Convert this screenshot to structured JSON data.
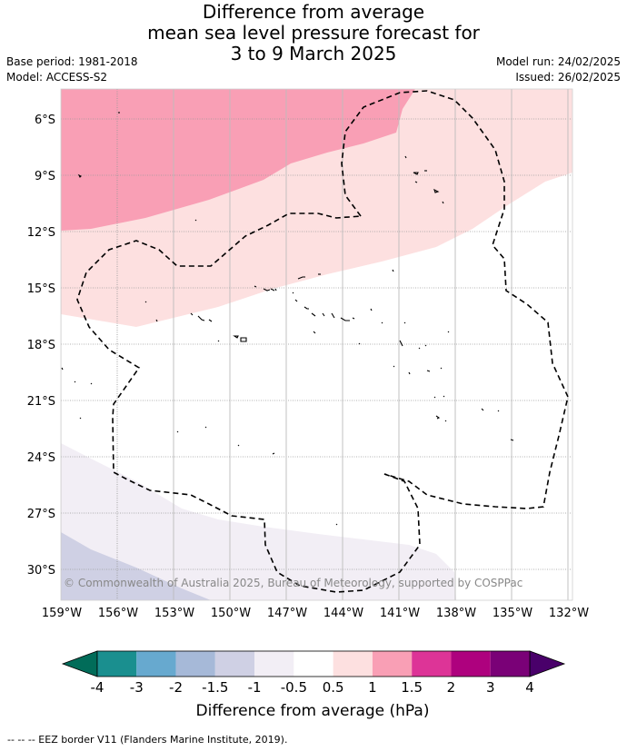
{
  "title": {
    "line1": "Difference from average",
    "line2": "mean sea level pressure forecast for",
    "line3": "3 to 9 March 2025"
  },
  "meta": {
    "base_period": "Base period: 1981-2018",
    "model": "Model: ACCESS-S2",
    "model_run": "Model run: 24/02/2025",
    "issued": "Issued: 26/02/2025"
  },
  "map": {
    "lat_labels": [
      "6°S",
      "9°S",
      "12°S",
      "15°S",
      "18°S",
      "21°S",
      "24°S",
      "27°S",
      "30°S"
    ],
    "lon_labels": [
      "159°W",
      "156°W",
      "153°W",
      "150°W",
      "147°W",
      "144°W",
      "141°W",
      "138°W",
      "135°W",
      "132°W"
    ],
    "copyright": "© Commonwealth of Australia 2025, Bureau of Meteorology, supported by COSPPac",
    "fills": {
      "p1_to_1_5": "#f99fb5",
      "p0_5_to_1": "#fde0e0",
      "m0_5_to_m1": "#f2eef5",
      "m1_to_m1_5": "#cfd0e4"
    }
  },
  "colorbar": {
    "tick_labels": [
      "-4",
      "-3",
      "-2",
      "-1.5",
      "-1",
      "-0.5",
      "0.5",
      "1",
      "1.5",
      "2",
      "3",
      "4"
    ],
    "segment_colors": [
      "#1a8f8f",
      "#67a9cf",
      "#a6b9d8",
      "#cfd0e4",
      "#f2eef5",
      "#ffffff",
      "#fde0e0",
      "#f99fb5",
      "#dd3497",
      "#ae017e",
      "#7a0177"
    ],
    "low_extend_color": "#016c59",
    "high_extend_color": "#49006a",
    "label": "Difference from average (hPa)"
  },
  "footer": "--  --  -- EEZ border V11 (Flanders Marine Institute, 2019)."
}
